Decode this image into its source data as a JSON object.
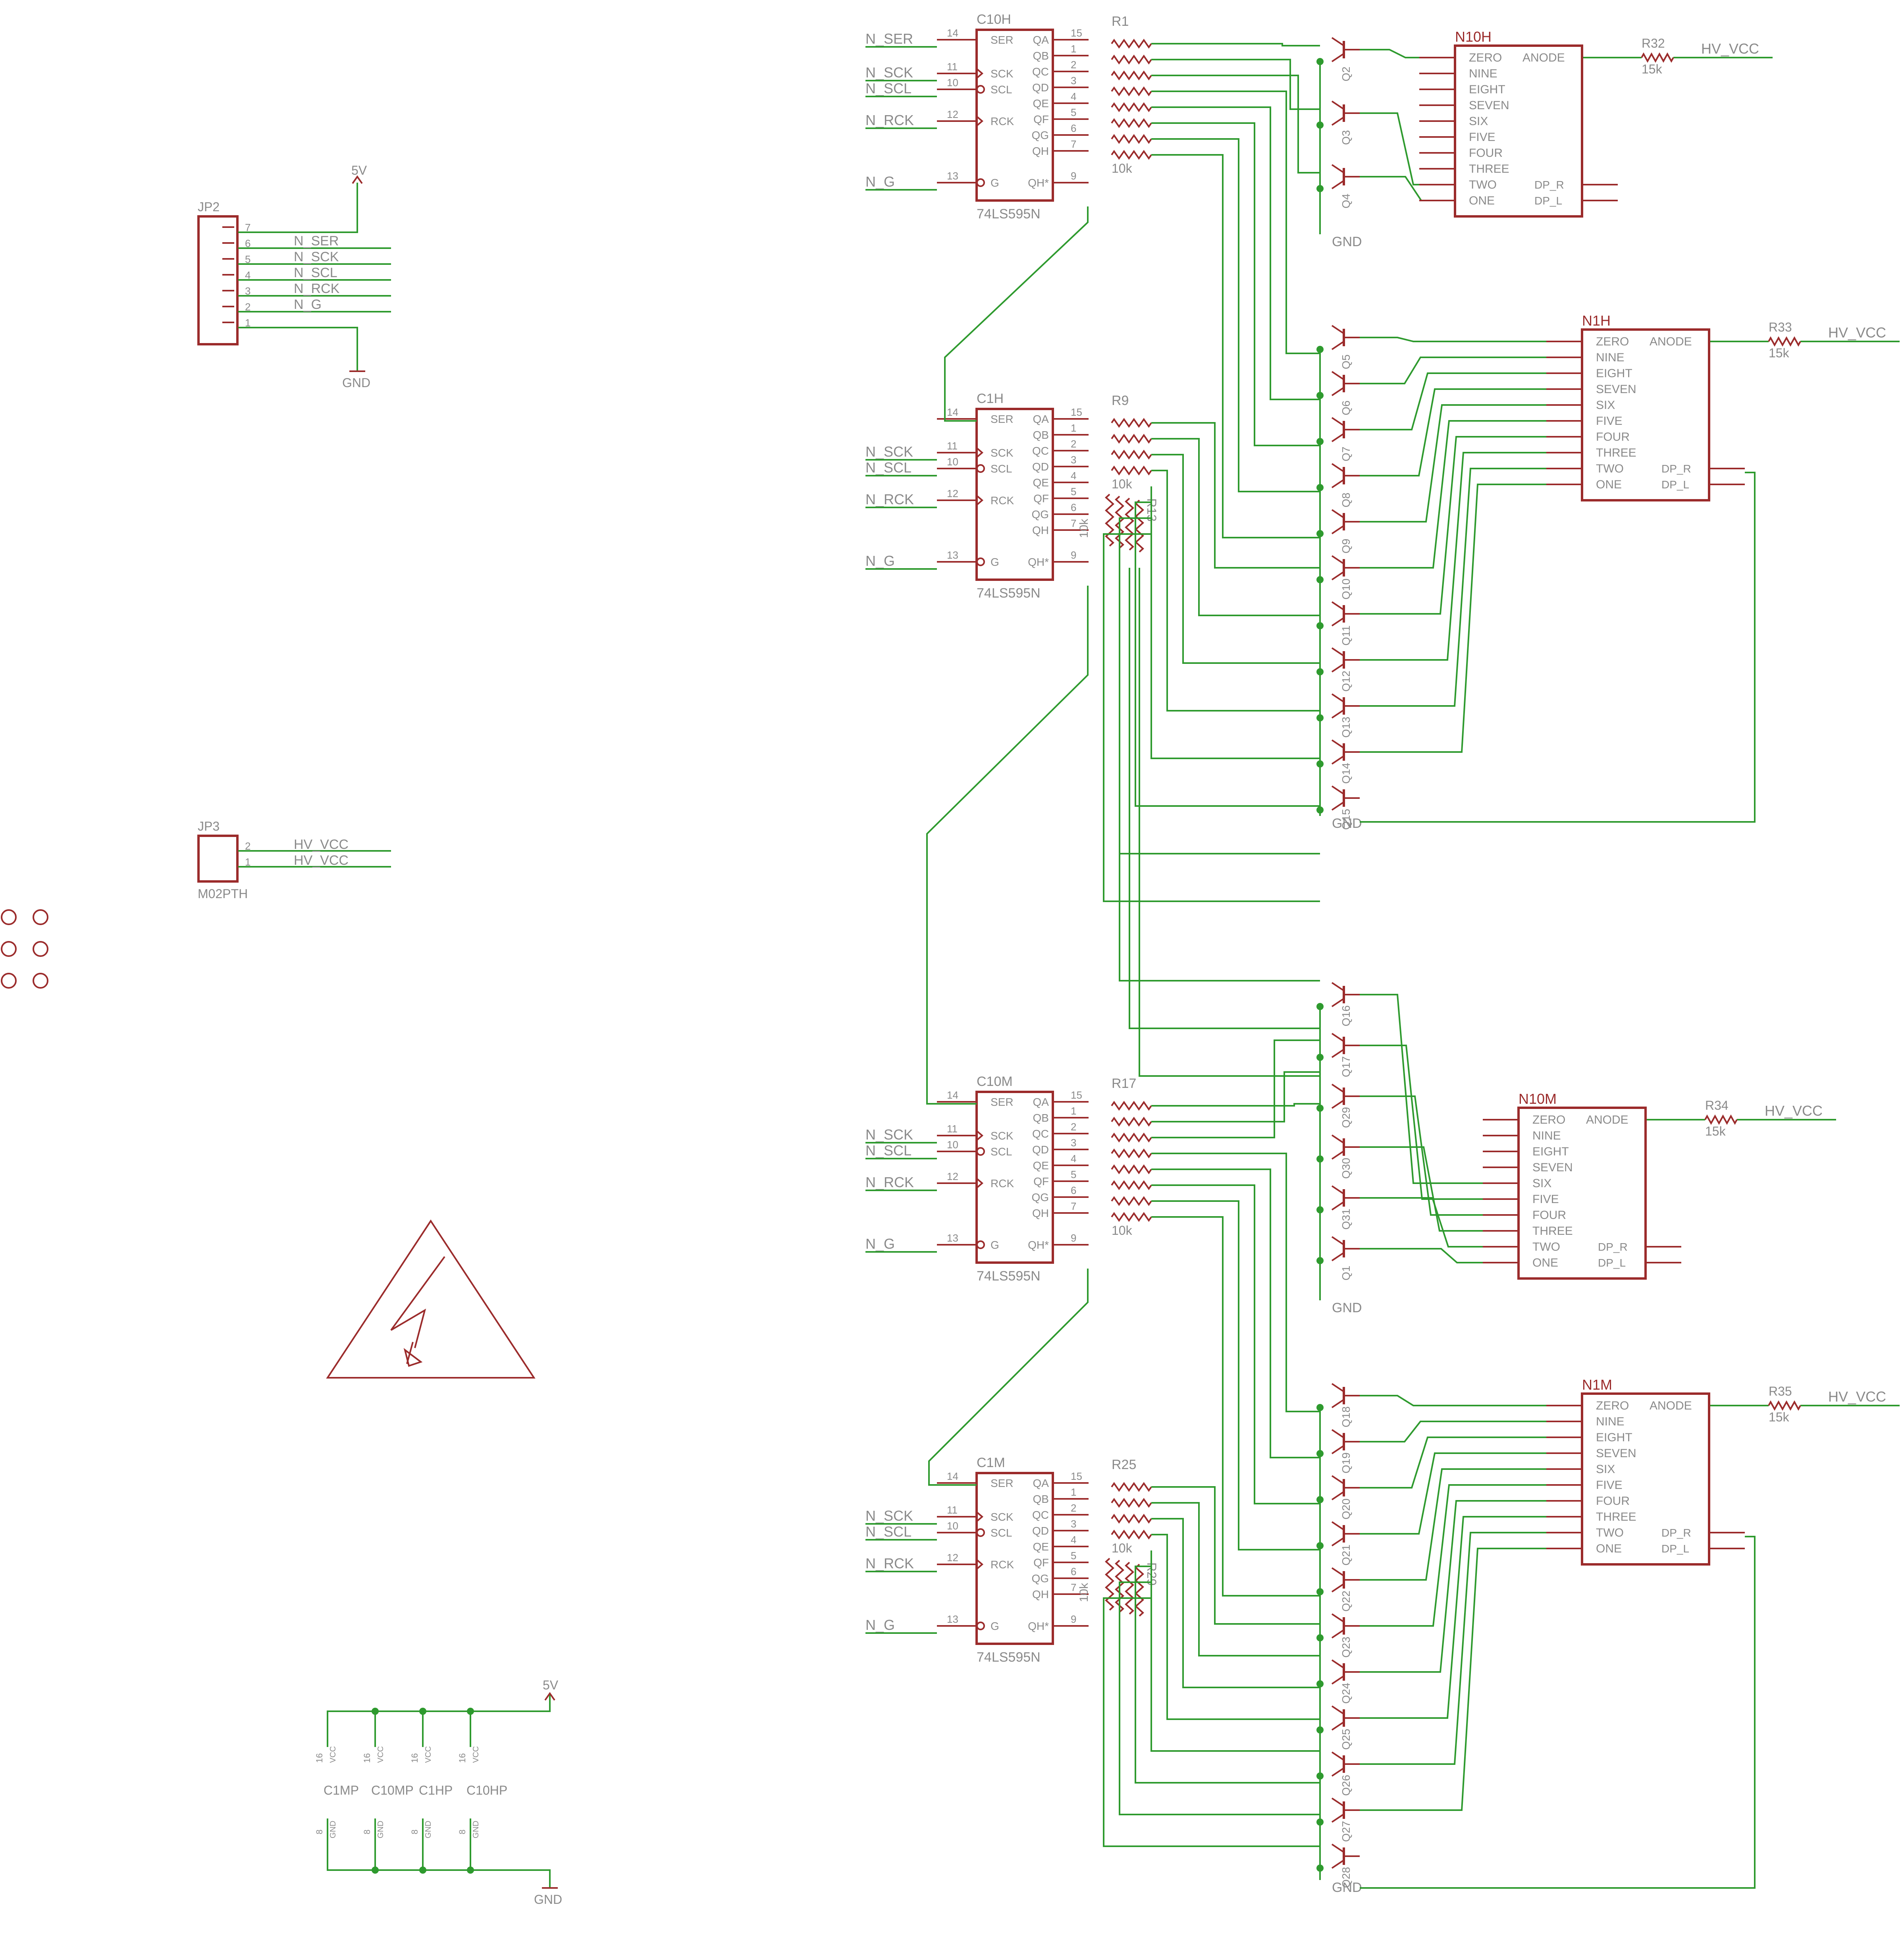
{
  "connectors": {
    "jp2": {
      "name": "JP2",
      "pins": [
        "7",
        "6",
        "5",
        "4",
        "3",
        "2",
        "1"
      ],
      "nets": [
        "N_SER",
        "N_SCK",
        "N_SCL",
        "N_RCK",
        "N_G"
      ],
      "supply": "5V",
      "ground": "GND"
    },
    "jp3": {
      "name": "JP3",
      "value": "M02PTH",
      "pins": [
        "2",
        "1"
      ],
      "nets": [
        "HV_VCC",
        "HV_VCC"
      ]
    }
  },
  "shift_registers": [
    {
      "name": "C10H",
      "value": "74LS595N",
      "ser_net": "N_SER",
      "nets": [
        "N_SCK",
        "N_SCL",
        "N_RCK",
        "N_G"
      ],
      "resistor": "R1",
      "resistor_value": "10k"
    },
    {
      "name": "C1H",
      "value": "74LS595N",
      "ser_net": "",
      "nets": [
        "N_SCK",
        "N_SCL",
        "N_RCK",
        "N_G"
      ],
      "resistor": "R9",
      "resistor_value": "10k",
      "extra_resistor": "R13"
    },
    {
      "name": "C10M",
      "value": "74LS595N",
      "ser_net": "",
      "nets": [
        "N_SCK",
        "N_SCL",
        "N_RCK",
        "N_G"
      ],
      "resistor": "R17",
      "resistor_value": "10k"
    },
    {
      "name": "C1M",
      "value": "74LS595N",
      "ser_net": "",
      "nets": [
        "N_SCK",
        "N_SCL",
        "N_RCK",
        "N_G"
      ],
      "resistor": "R25",
      "resistor_value": "10k",
      "extra_resistor": "R29"
    }
  ],
  "chip_pins": {
    "left_labels": [
      "SER",
      "SCK",
      "SCL",
      "RCK",
      "G"
    ],
    "left_numbers": [
      "14",
      "11",
      "10",
      "12",
      "13"
    ],
    "right_labels": [
      "QA",
      "QB",
      "QC",
      "QD",
      "QE",
      "QF",
      "QG",
      "QH",
      "QH*"
    ],
    "right_numbers": [
      "15",
      "1",
      "2",
      "3",
      "4",
      "5",
      "6",
      "7",
      "9"
    ]
  },
  "displays": [
    {
      "name": "N10H",
      "resistor": "R32",
      "resistor_value": "15k",
      "net": "HV_VCC"
    },
    {
      "name": "N1H",
      "resistor": "R33",
      "resistor_value": "15k",
      "net": "HV_VCC"
    },
    {
      "name": "N10M",
      "resistor": "R34",
      "resistor_value": "15k",
      "net": "HV_VCC"
    },
    {
      "name": "N1M",
      "resistor": "R35",
      "resistor_value": "15k",
      "net": "HV_VCC"
    }
  ],
  "display_pins": {
    "digits": [
      "ZERO",
      "NINE",
      "EIGHT",
      "SEVEN",
      "SIX",
      "FIVE",
      "FOUR",
      "THREE",
      "TWO",
      "ONE"
    ],
    "anode": "ANODE",
    "dp": [
      "DP_R",
      "DP_L"
    ]
  },
  "transistor_labels": {
    "n10h": [
      "Q2",
      "Q3",
      "Q4"
    ],
    "n1h": [
      "Q5",
      "Q6",
      "Q7",
      "Q8",
      "Q9",
      "Q10",
      "Q11",
      "Q12",
      "Q13",
      "Q14",
      "Q15"
    ],
    "n10m": [
      "Q16",
      "Q17",
      "Q29",
      "Q30",
      "Q31",
      "Q1"
    ],
    "n1m": [
      "Q18",
      "Q19",
      "Q20",
      "Q21",
      "Q22",
      "Q23",
      "Q24",
      "Q25",
      "Q26",
      "Q27",
      "Q28"
    ]
  },
  "ground_label": "GND",
  "power": {
    "supply": "5V",
    "ground": "GND",
    "caps": [
      "C1MP",
      "C10MP",
      "C1HP",
      "C10HP"
    ],
    "vcc_pin": "16",
    "vcc_label": "VCC",
    "gnd_pin": "8",
    "gnd_label": "GND"
  },
  "colors": {
    "wire": "#2e9a2e",
    "part": "#9b2b2b",
    "text": "#8a8a8a",
    "background": "#ffffff"
  },
  "icons": [
    "high-voltage-warning-icon",
    "mounting-hole-icon"
  ]
}
